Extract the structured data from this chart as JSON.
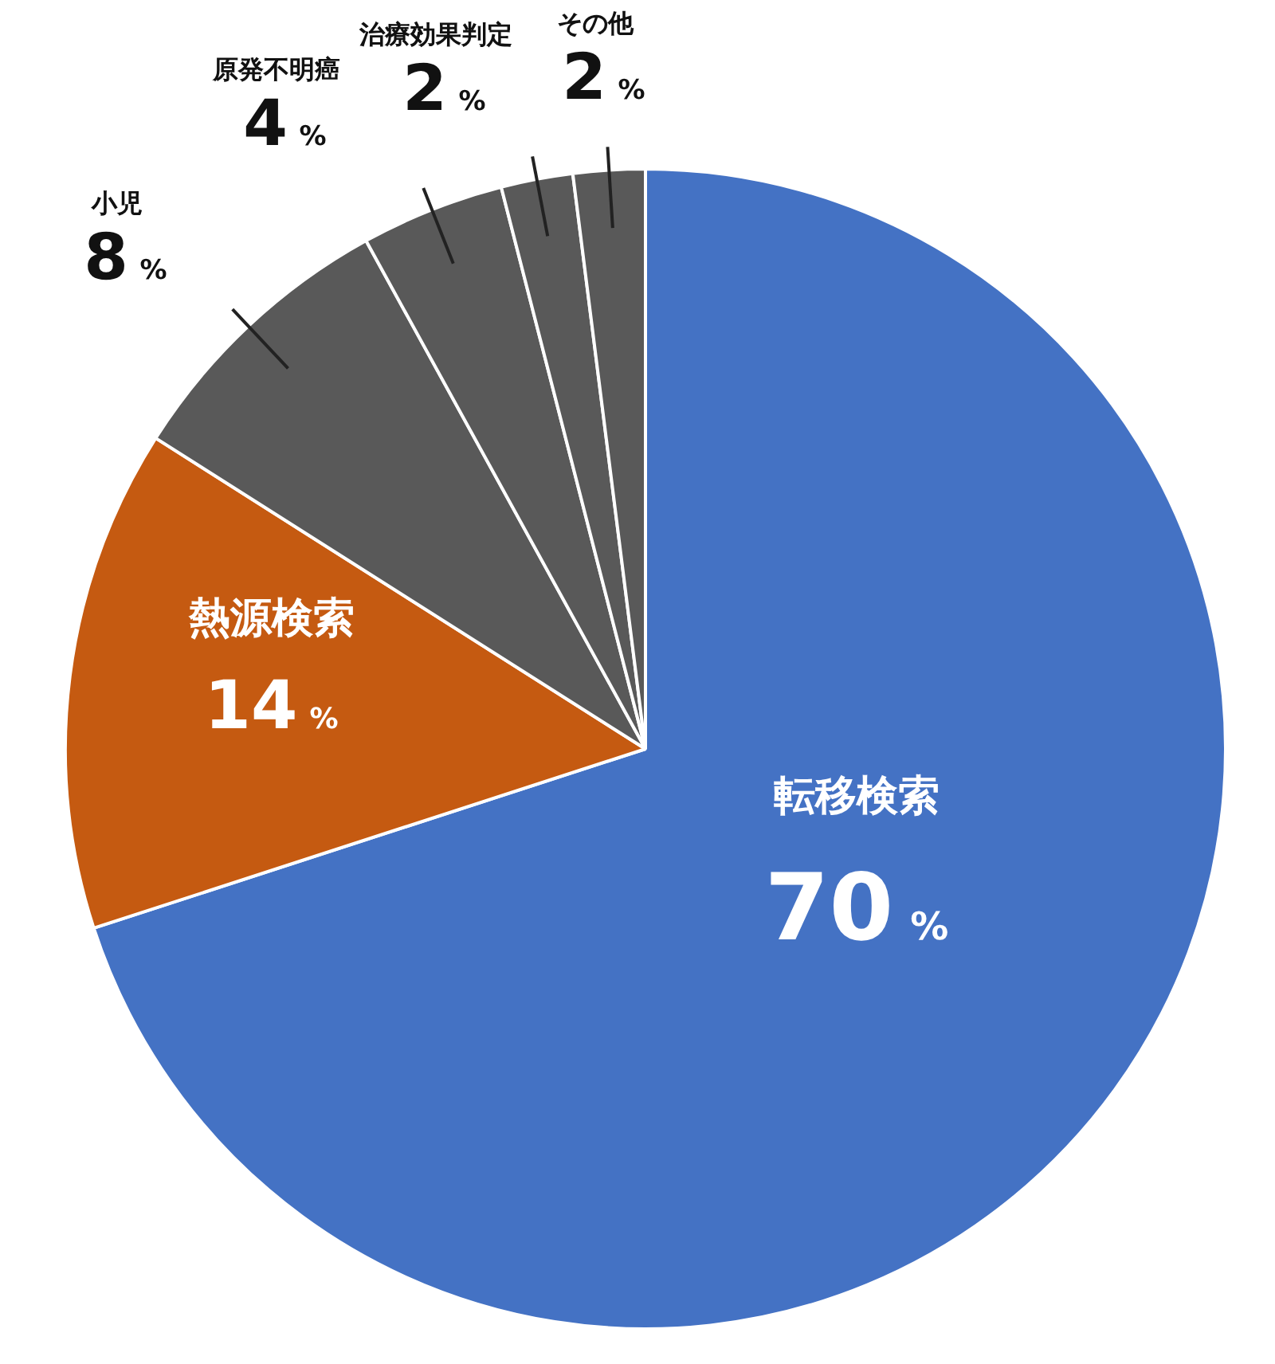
{
  "chart_data": {
    "type": "pie",
    "categories": [
      "転移検索",
      "熱源検索",
      "小児",
      "原発不明癌",
      "治療効果判定",
      "その他"
    ],
    "values": [
      70,
      14,
      8,
      4,
      2,
      2
    ],
    "colors": [
      "#4472c4",
      "#c55a11",
      "#595959",
      "#595959",
      "#595959",
      "#595959"
    ],
    "value_labels": [
      "70%",
      "14%",
      "8%",
      "4%",
      "2%",
      "2%"
    ],
    "legend": false
  }
}
